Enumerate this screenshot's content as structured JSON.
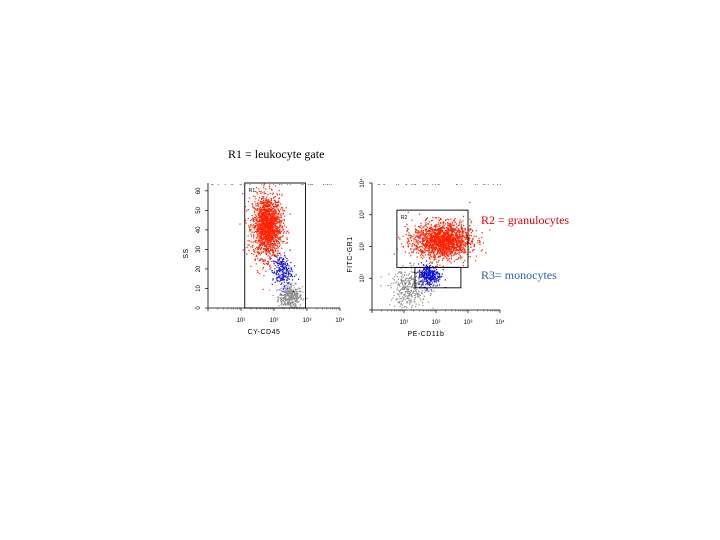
{
  "slide": {
    "title": "R1 = leukocyte gate",
    "legend": [
      {
        "label": "R2 ",
        "text": "= granulocytes",
        "label_color": "#e00000",
        "text_color": "#e00000"
      },
      {
        "label": "R3",
        "text": "= monocytes",
        "label_color": "#2a5fb0",
        "text_color": "#2a5fb0"
      }
    ]
  },
  "colors": {
    "granulocytes": "#ff2000",
    "monocytes": "#1010e0",
    "other": "#909090"
  },
  "chart_data": [
    {
      "type": "scatter",
      "title": "",
      "xlabel": "CY-CD45",
      "ylabel": "SS",
      "xscale": "log",
      "xlim": [
        1,
        10000
      ],
      "x_ticks": [
        "10¹",
        "10²",
        "10³",
        "10⁴"
      ],
      "ylim": [
        0,
        64
      ],
      "y_ticks": [
        "0",
        "10",
        "20",
        "30",
        "40",
        "50",
        "60"
      ],
      "gates": [
        {
          "name": "R1",
          "x": [
            13,
            900
          ],
          "y": [
            0,
            64
          ]
        }
      ],
      "populations": [
        {
          "name": "granulocytes",
          "color": "#ff2000",
          "x_center": 60,
          "y_center": 42,
          "x_spread": 0.22,
          "y_spread": 8,
          "count": 1600
        },
        {
          "name": "monocytes",
          "color": "#1010e0",
          "x_center": 170,
          "y_center": 19,
          "x_spread": 0.15,
          "y_spread": 4,
          "count": 220
        },
        {
          "name": "other",
          "color": "#909090",
          "x_center": 300,
          "y_center": 6,
          "x_spread": 0.18,
          "y_spread": 3,
          "count": 380
        }
      ]
    },
    {
      "type": "scatter",
      "title": "",
      "xlabel": "PE-CD11b",
      "ylabel": "FITC-GR1",
      "xscale": "log",
      "yscale": "log",
      "xlim": [
        1,
        10000
      ],
      "ylim": [
        1,
        10000
      ],
      "x_ticks": [
        "10¹",
        "10²",
        "10³",
        "10⁴"
      ],
      "y_ticks": [
        "10¹",
        "10²",
        "10³",
        "10⁴"
      ],
      "gates": [
        {
          "name": "R2",
          "x": [
            6,
            1000
          ],
          "y": [
            22,
            1400
          ]
        },
        {
          "name": "R3",
          "x": [
            22,
            600
          ],
          "y": [
            5,
            22
          ]
        }
      ],
      "populations": [
        {
          "name": "granulocytes",
          "color": "#ff2000",
          "x_center": 150,
          "y_center": 160,
          "x_spread": 0.45,
          "y_spread": 0.28,
          "count": 1700
        },
        {
          "name": "monocytes",
          "color": "#1010e0",
          "x_center": 60,
          "y_center": 13,
          "x_spread": 0.18,
          "y_spread": 0.18,
          "count": 300
        },
        {
          "name": "other",
          "color": "#909090",
          "x_center": 15,
          "y_center": 5,
          "x_spread": 0.3,
          "y_spread": 0.3,
          "count": 350
        }
      ]
    }
  ]
}
